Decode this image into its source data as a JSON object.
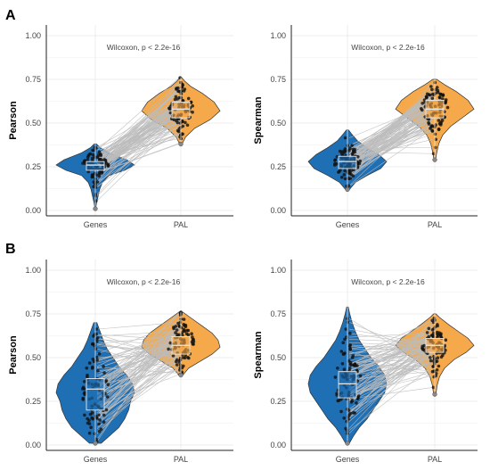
{
  "figure": {
    "row_labels": [
      "A",
      "B"
    ]
  },
  "colors": {
    "genes": "#1f6fb5",
    "pal": "#f5a94a",
    "pair_lines": "#bdbdbd",
    "points": "#111111",
    "box_stroke": "#e8e8e8",
    "grid": "#ececec",
    "outline": "#333333"
  },
  "chart_data": [
    {
      "type": "violin",
      "panel": "A",
      "title": "Wilcoxon, p < 2.2e-16",
      "xlabel": "",
      "ylabel": "Pearson",
      "categories": [
        "Genes",
        "PAL"
      ],
      "ylim": [
        0,
        1
      ],
      "y_ticks": [
        "0.00",
        "0.25",
        "0.50",
        "0.75",
        "1.00"
      ],
      "grid": true,
      "series": [
        {
          "name": "Genes",
          "min": 0.01,
          "q1": 0.23,
          "median": 0.26,
          "q3": 0.28,
          "max": 0.38,
          "density": [
            [
              0.01,
              0.01
            ],
            [
              0.04,
              0.03
            ],
            [
              0.08,
              0.07
            ],
            [
              0.12,
              0.11
            ],
            [
              0.16,
              0.18
            ],
            [
              0.2,
              0.35
            ],
            [
              0.23,
              0.75
            ],
            [
              0.26,
              1.0
            ],
            [
              0.29,
              0.8
            ],
            [
              0.33,
              0.35
            ],
            [
              0.36,
              0.12
            ],
            [
              0.38,
              0.03
            ]
          ]
        },
        {
          "name": "PAL",
          "min": 0.38,
          "q1": 0.53,
          "median": 0.58,
          "q3": 0.62,
          "max": 0.76,
          "density": [
            [
              0.38,
              0.03
            ],
            [
              0.42,
              0.12
            ],
            [
              0.47,
              0.35
            ],
            [
              0.52,
              0.75
            ],
            [
              0.57,
              1.0
            ],
            [
              0.62,
              0.85
            ],
            [
              0.67,
              0.55
            ],
            [
              0.71,
              0.25
            ],
            [
              0.74,
              0.1
            ],
            [
              0.76,
              0.02
            ]
          ]
        }
      ]
    },
    {
      "type": "violin",
      "panel": "A",
      "title": "Wilcoxon, p < 2.2e-16",
      "xlabel": "",
      "ylabel": "Spearman",
      "categories": [
        "Genes",
        "PAL"
      ],
      "ylim": [
        0,
        1
      ],
      "y_ticks": [
        "0.00",
        "0.25",
        "0.50",
        "0.75",
        "1.00"
      ],
      "grid": true,
      "series": [
        {
          "name": "Genes",
          "min": 0.12,
          "q1": 0.24,
          "median": 0.28,
          "q3": 0.31,
          "max": 0.46,
          "density": [
            [
              0.12,
              0.05
            ],
            [
              0.16,
              0.2
            ],
            [
              0.2,
              0.5
            ],
            [
              0.24,
              0.85
            ],
            [
              0.28,
              1.0
            ],
            [
              0.32,
              0.8
            ],
            [
              0.36,
              0.5
            ],
            [
              0.4,
              0.25
            ],
            [
              0.44,
              0.1
            ],
            [
              0.46,
              0.03
            ]
          ]
        },
        {
          "name": "PAL",
          "min": 0.29,
          "q1": 0.53,
          "median": 0.58,
          "q3": 0.63,
          "max": 0.75,
          "density": [
            [
              0.29,
              0.02
            ],
            [
              0.33,
              0.05
            ],
            [
              0.38,
              0.1
            ],
            [
              0.43,
              0.2
            ],
            [
              0.48,
              0.4
            ],
            [
              0.53,
              0.7
            ],
            [
              0.58,
              1.0
            ],
            [
              0.63,
              0.85
            ],
            [
              0.68,
              0.55
            ],
            [
              0.72,
              0.25
            ],
            [
              0.75,
              0.05
            ]
          ]
        }
      ]
    },
    {
      "type": "violin",
      "panel": "B",
      "title": "Wilcoxon, p < 2.2e-16",
      "xlabel": "",
      "ylabel": "Pearson",
      "categories": [
        "Genes",
        "PAL"
      ],
      "ylim": [
        0,
        1
      ],
      "y_ticks": [
        "0.00",
        "0.25",
        "0.50",
        "0.75",
        "1.00"
      ],
      "grid": true,
      "series": [
        {
          "name": "Genes",
          "min": 0.01,
          "q1": 0.2,
          "median": 0.32,
          "q3": 0.38,
          "max": 0.7,
          "density": [
            [
              0.01,
              0.15
            ],
            [
              0.05,
              0.35
            ],
            [
              0.1,
              0.6
            ],
            [
              0.15,
              0.75
            ],
            [
              0.2,
              0.85
            ],
            [
              0.25,
              0.9
            ],
            [
              0.3,
              1.0
            ],
            [
              0.35,
              0.95
            ],
            [
              0.4,
              0.8
            ],
            [
              0.45,
              0.6
            ],
            [
              0.5,
              0.45
            ],
            [
              0.55,
              0.3
            ],
            [
              0.6,
              0.2
            ],
            [
              0.65,
              0.12
            ],
            [
              0.7,
              0.04
            ]
          ]
        },
        {
          "name": "PAL",
          "min": 0.4,
          "q1": 0.52,
          "median": 0.57,
          "q3": 0.62,
          "max": 0.76,
          "density": [
            [
              0.4,
              0.05
            ],
            [
              0.44,
              0.2
            ],
            [
              0.48,
              0.5
            ],
            [
              0.52,
              0.8
            ],
            [
              0.56,
              1.0
            ],
            [
              0.6,
              0.95
            ],
            [
              0.64,
              0.8
            ],
            [
              0.68,
              0.55
            ],
            [
              0.72,
              0.3
            ],
            [
              0.76,
              0.05
            ]
          ]
        }
      ]
    },
    {
      "type": "violin",
      "panel": "B",
      "title": "Wilcoxon, p < 2.2e-16",
      "xlabel": "",
      "ylabel": "Spearman",
      "categories": [
        "Genes",
        "PAL"
      ],
      "ylim": [
        0,
        1
      ],
      "y_ticks": [
        "0.00",
        "0.25",
        "0.50",
        "0.75",
        "1.00"
      ],
      "grid": true,
      "series": [
        {
          "name": "Genes",
          "min": 0.01,
          "q1": 0.27,
          "median": 0.35,
          "q3": 0.42,
          "max": 0.79,
          "density": [
            [
              0.01,
              0.05
            ],
            [
              0.05,
              0.15
            ],
            [
              0.1,
              0.3
            ],
            [
              0.15,
              0.5
            ],
            [
              0.2,
              0.65
            ],
            [
              0.25,
              0.8
            ],
            [
              0.3,
              0.95
            ],
            [
              0.35,
              1.0
            ],
            [
              0.4,
              0.95
            ],
            [
              0.45,
              0.8
            ],
            [
              0.5,
              0.6
            ],
            [
              0.55,
              0.45
            ],
            [
              0.6,
              0.3
            ],
            [
              0.65,
              0.2
            ],
            [
              0.7,
              0.12
            ],
            [
              0.75,
              0.06
            ],
            [
              0.79,
              0.02
            ]
          ]
        },
        {
          "name": "PAL",
          "min": 0.29,
          "q1": 0.53,
          "median": 0.57,
          "q3": 0.61,
          "max": 0.75,
          "density": [
            [
              0.29,
              0.03
            ],
            [
              0.34,
              0.06
            ],
            [
              0.39,
              0.12
            ],
            [
              0.44,
              0.25
            ],
            [
              0.49,
              0.5
            ],
            [
              0.53,
              0.8
            ],
            [
              0.57,
              1.0
            ],
            [
              0.61,
              0.85
            ],
            [
              0.65,
              0.6
            ],
            [
              0.69,
              0.35
            ],
            [
              0.73,
              0.12
            ],
            [
              0.75,
              0.03
            ]
          ]
        }
      ]
    }
  ]
}
